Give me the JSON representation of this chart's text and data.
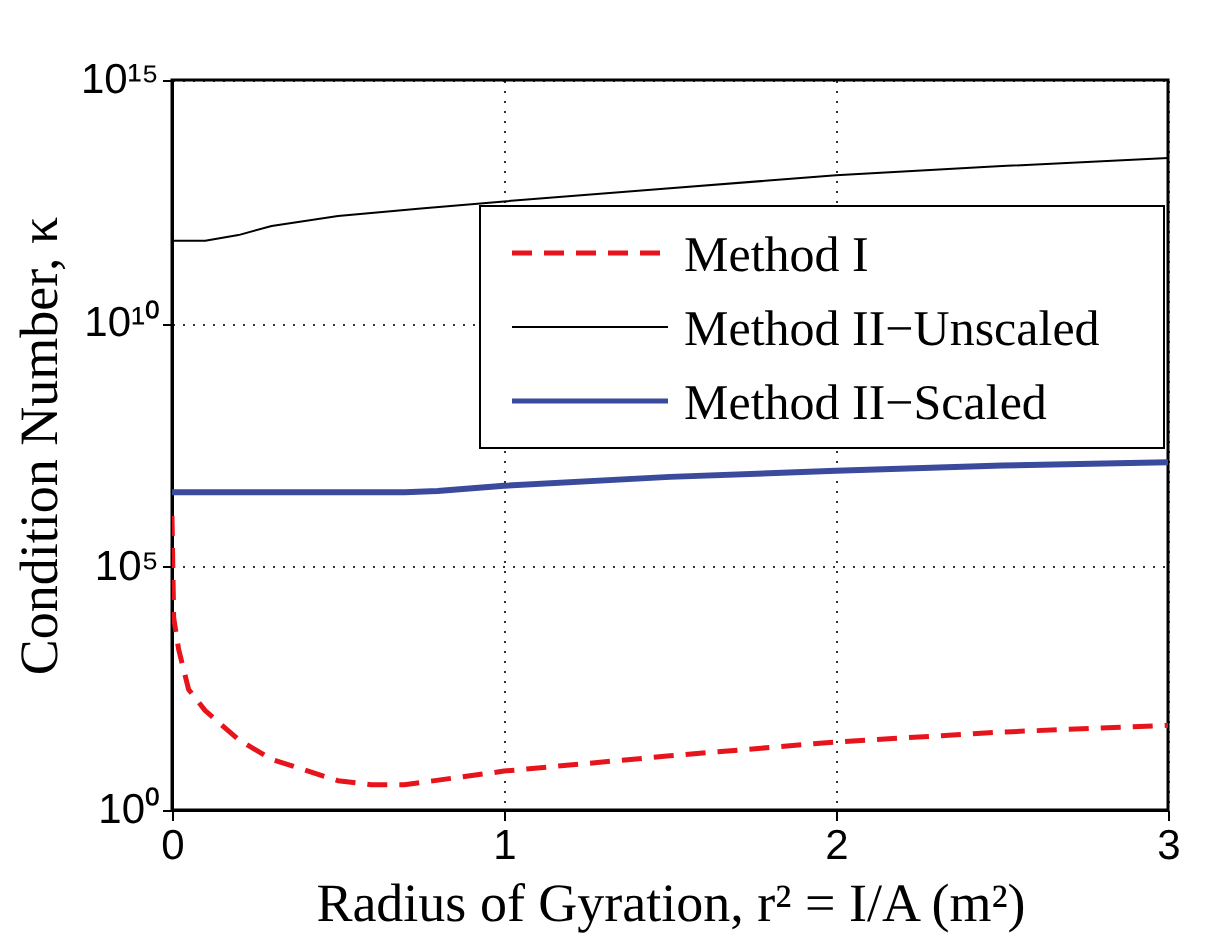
{
  "chart_data": {
    "type": "line",
    "xlabel": "Radius of Gyration, r² = I/A (m²)",
    "ylabel": "Condition Number,  κ",
    "log": "y",
    "xlim": [
      0,
      3
    ],
    "xticks": [
      0,
      1,
      2,
      3
    ],
    "ylim": [
      1,
      1000000000000000.0
    ],
    "yticks": [
      {
        "value": 1,
        "label": "10⁰"
      },
      {
        "value": 100000,
        "label": "10⁵"
      },
      {
        "value": 10000000000,
        "label": "10¹⁰"
      },
      {
        "value": 1000000000000000,
        "label": "10¹⁵"
      }
    ],
    "grid": true,
    "legend": "top right",
    "marker": "none",
    "series": [
      {
        "name": "Method I",
        "color": "#e8141c",
        "line_style": "dashed",
        "x": [
          0,
          0.005,
          0.02,
          0.05,
          0.1,
          0.2,
          0.3,
          0.5,
          0.6,
          0.7,
          1,
          1.5,
          2,
          2.5,
          3
        ],
        "values": [
          1100000,
          9000,
          2000,
          300,
          110,
          28,
          11,
          4,
          3.3,
          3.3,
          6.3,
          13,
          25,
          40,
          55
        ]
      },
      {
        "name": "Method II−Unscaled",
        "color": "#000000",
        "line_style": "solid",
        "x": [
          0,
          0.1,
          0.2,
          0.3,
          0.5,
          0.75,
          1,
          1.5,
          2,
          2.5,
          3
        ],
        "values": [
          500000000000,
          500000000000,
          650000000000,
          1000000000000,
          1600000000000,
          2300000000000,
          3200000000000,
          6000000000000,
          11000000000000,
          17000000000000,
          25000000000000
        ]
      },
      {
        "name": "Method II−Scaled",
        "color": "#3a4a9c",
        "line_style": "solid",
        "x": [
          0,
          0.7,
          0.8,
          1,
          1.5,
          2,
          2.5,
          3
        ],
        "values": [
          3400000,
          3400000,
          3600000,
          4600000,
          7000000,
          9300000,
          12000000,
          14000000
        ]
      }
    ]
  }
}
